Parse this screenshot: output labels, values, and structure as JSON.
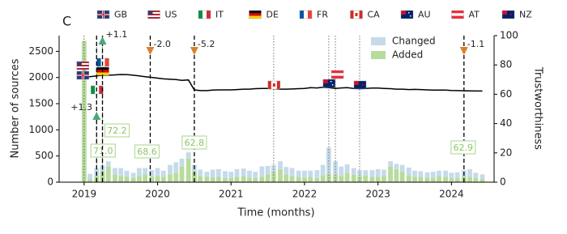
{
  "chart_data": {
    "type": "bar",
    "panel_label": "C",
    "xlabel": "Time (months)",
    "ylabel": "Number of sources",
    "y2label": "Trustworthiness",
    "xlim": [
      2018.66,
      2024.58
    ],
    "xticks": [
      2019,
      2020,
      2021,
      2022,
      2023,
      2024
    ],
    "ylim": [
      0,
      2800
    ],
    "yticks": [
      0,
      500,
      1000,
      1500,
      2000,
      2500
    ],
    "y2lim": [
      0,
      100
    ],
    "y2ticks": [
      0,
      20,
      40,
      60,
      80,
      100
    ],
    "legend": "upper right",
    "x": [
      2019.0,
      2019.08,
      2019.17,
      2019.25,
      2019.33,
      2019.42,
      2019.5,
      2019.58,
      2019.67,
      2019.75,
      2019.83,
      2019.92,
      2020.0,
      2020.08,
      2020.17,
      2020.25,
      2020.33,
      2020.42,
      2020.5,
      2020.58,
      2020.67,
      2020.75,
      2020.83,
      2020.92,
      2021.0,
      2021.08,
      2021.17,
      2021.25,
      2021.33,
      2021.42,
      2021.5,
      2021.58,
      2021.67,
      2021.75,
      2021.83,
      2021.92,
      2022.0,
      2022.08,
      2022.17,
      2022.25,
      2022.33,
      2022.42,
      2022.5,
      2022.58,
      2022.67,
      2022.75,
      2022.83,
      2022.92,
      2023.0,
      2023.08,
      2023.17,
      2023.25,
      2023.33,
      2023.42,
      2023.5,
      2023.58,
      2023.67,
      2023.75,
      2023.83,
      2023.92,
      2024.0,
      2024.08,
      2024.17,
      2024.25,
      2024.33,
      2024.42
    ],
    "series": [
      {
        "name": "Added",
        "color": "#b7dc9c",
        "values": [
          2700,
          60,
          120,
          200,
          300,
          150,
          120,
          100,
          80,
          120,
          150,
          100,
          120,
          100,
          150,
          180,
          300,
          450,
          200,
          120,
          100,
          90,
          100,
          80,
          80,
          100,
          120,
          90,
          80,
          100,
          150,
          200,
          250,
          150,
          120,
          100,
          90,
          100,
          80,
          130,
          160,
          150,
          120,
          180,
          140,
          110,
          130,
          100,
          100,
          120,
          300,
          250,
          200,
          130,
          100,
          100,
          90,
          80,
          120,
          100,
          80,
          70,
          120,
          100,
          80,
          60
        ]
      },
      {
        "name": "Changed",
        "color": "#c6dbea",
        "values": [
          0,
          100,
          150,
          120,
          100,
          120,
          150,
          120,
          100,
          150,
          120,
          130,
          150,
          120,
          180,
          200,
          150,
          120,
          130,
          120,
          100,
          150,
          150,
          130,
          120,
          150,
          140,
          130,
          120,
          200,
          160,
          130,
          150,
          140,
          150,
          120,
          130,
          120,
          150,
          200,
          500,
          250,
          180,
          160,
          130,
          120,
          100,
          130,
          150,
          120,
          100,
          100,
          130,
          150,
          120,
          110,
          100,
          120,
          100,
          120,
          100,
          120,
          110,
          150,
          100,
          90
        ]
      }
    ],
    "line": {
      "axis": "y2",
      "color": "#000000",
      "values": [
        72,
        72,
        72.5,
        73,
        73,
        73.2,
        73.5,
        73.4,
        73,
        72.5,
        72,
        71.5,
        71,
        70.5,
        70.2,
        70,
        69.5,
        69.8,
        63,
        62.5,
        62.5,
        62.8,
        63,
        63,
        63,
        63.2,
        63.5,
        63.5,
        63.8,
        64,
        64,
        63.8,
        63.5,
        63.5,
        63.6,
        63.8,
        64,
        64.5,
        64.3,
        64.8,
        64.5,
        64,
        64.3,
        64.5,
        64,
        63.8,
        64,
        64.2,
        64.2,
        64,
        63.8,
        63.5,
        63.5,
        63.2,
        63.3,
        63.2,
        63,
        62.8,
        62.9,
        62.8,
        62.6,
        62.5,
        62.4,
        62.3,
        62.2,
        62.2
      ]
    },
    "countries": [
      {
        "label": "GB",
        "date": 2019.0
      },
      {
        "label": "US",
        "date": 2019.0
      },
      {
        "label": "IT",
        "date": 2019.17
      },
      {
        "label": "DE",
        "date": 2019.25
      },
      {
        "label": "FR",
        "date": 2019.25
      },
      {
        "label": "CA",
        "date": 2021.58
      },
      {
        "label": "AU",
        "date": 2022.33
      },
      {
        "label": "AT",
        "date": 2022.42
      },
      {
        "label": "NZ",
        "date": 2022.75
      }
    ],
    "events": {
      "dates": [
        2019.17,
        2019.25,
        2019.9,
        2020.5,
        2024.17
      ],
      "deltas": [
        1.3,
        1.1,
        -2.0,
        -5.2,
        -1.1
      ],
      "delta_labels": [
        "+1.3",
        "+1.1",
        "-2.0",
        "-5.2",
        "-1.1"
      ],
      "trust": [
        71,
        72.2,
        68.6,
        62.8,
        62.9
      ],
      "trust_labels": [
        "71.0",
        "72.2",
        "68.6",
        "62.8",
        "62.9"
      ]
    }
  }
}
